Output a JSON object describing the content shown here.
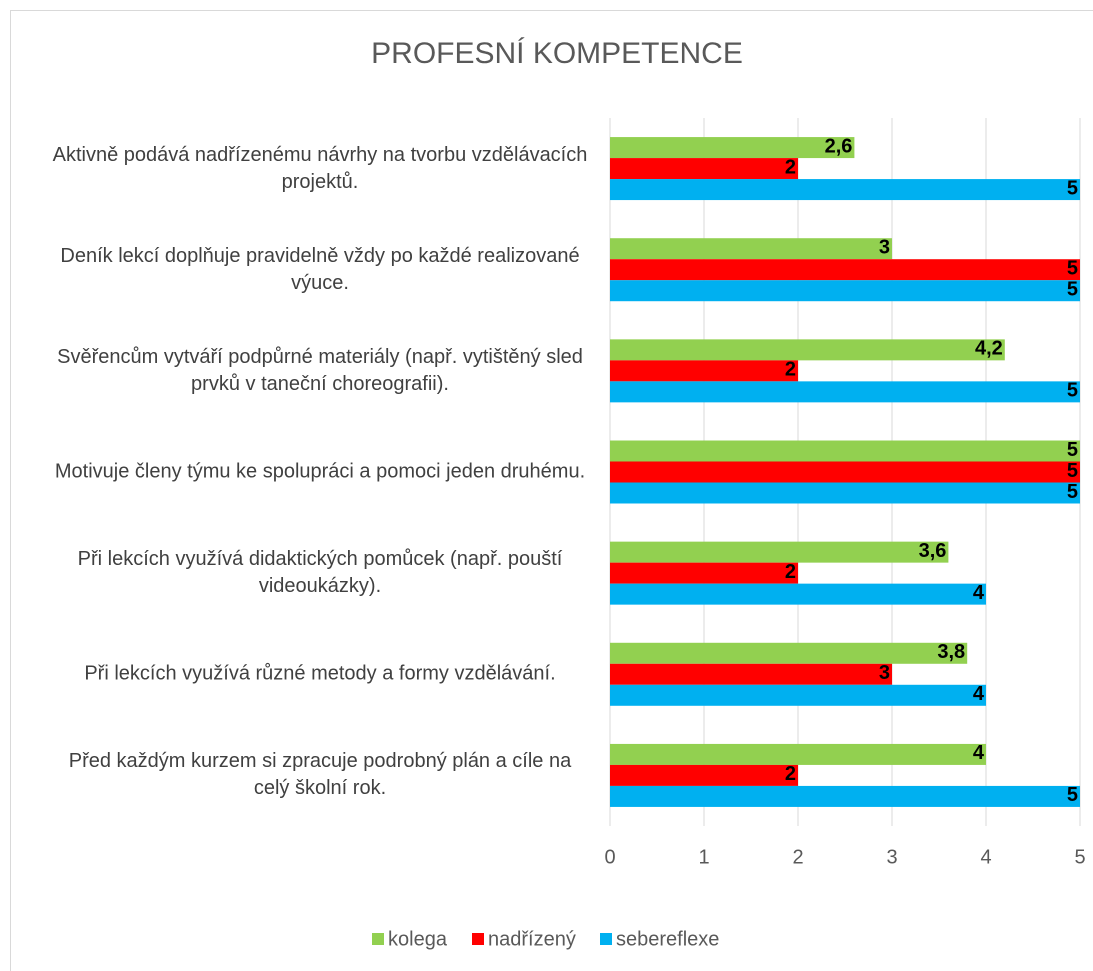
{
  "chart_data": {
    "type": "hbar",
    "title": "PROFESNÍ KOMPETENCE",
    "categories": [
      "Aktivně podává nadřízenému návrhy na tvorbu vzdělávacích projektů.",
      "Deník lekcí doplňuje pravidelně vždy po každé realizované výuce.",
      "Svěřencům vytváří podpůrné materiály (např. vytištěný sled prvků v taneční choreografii).",
      "Motivuje členy týmu ke spolupráci a pomoci jeden druhému.",
      "Při lekcích využívá didaktických pomůcek (např. pouští videoukázky).",
      "Při lekcích využívá různé metody a formy vzdělávání.",
      "Před každým kurzem si zpracuje podrobný plán a cíle na celý školní rok."
    ],
    "series": [
      {
        "name": "kolega",
        "color": "#92d050",
        "values": [
          2.6,
          3,
          4.2,
          5,
          3.6,
          3.8,
          4
        ],
        "value_labels": [
          "2,6",
          "3",
          "4,2",
          "5",
          "3,6",
          "3,8",
          "4"
        ]
      },
      {
        "name": "nadřízený",
        "color": "#ff0000",
        "values": [
          2,
          5,
          2,
          5,
          2,
          3,
          2
        ],
        "value_labels": [
          "2",
          "5",
          "2",
          "5",
          "2",
          "3",
          "2"
        ]
      },
      {
        "name": "sebereflexe",
        "color": "#00b0f0",
        "values": [
          5,
          5,
          5,
          5,
          4,
          4,
          5
        ],
        "value_labels": [
          "5",
          "5",
          "5",
          "5",
          "4",
          "4",
          "5"
        ]
      }
    ],
    "xlim": [
      0,
      5
    ],
    "xticks": [
      0,
      1,
      2,
      3,
      4,
      5
    ],
    "grid": true,
    "legend": "bottom"
  }
}
